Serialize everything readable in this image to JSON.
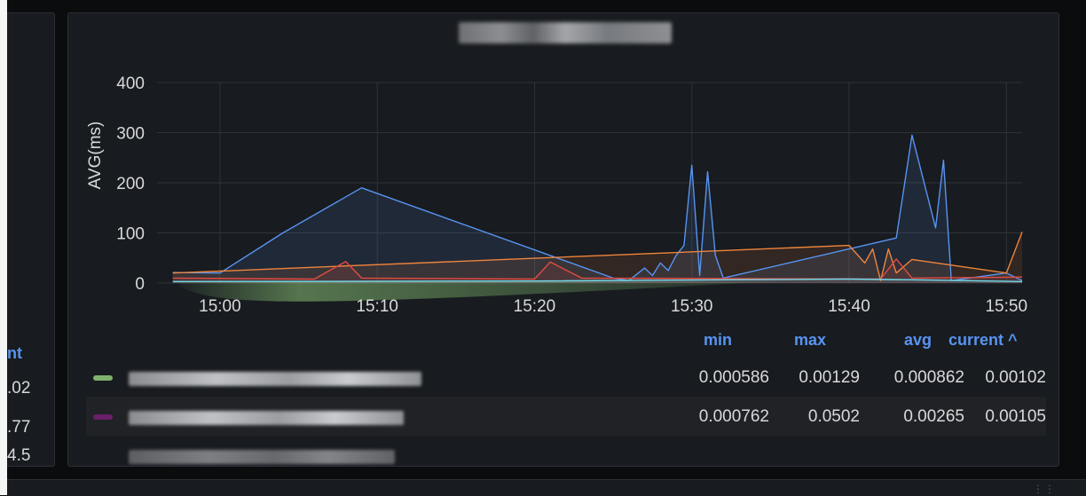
{
  "panel": {
    "y_axis_label": "AVG(ms)",
    "y_ticks": [
      "400",
      "300",
      "200",
      "100",
      "0"
    ],
    "x_ticks": [
      "15:00",
      "15:10",
      "15:20",
      "15:30",
      "15:40",
      "15:50"
    ]
  },
  "legend": {
    "columns": {
      "min": "min",
      "max": "max",
      "avg": "avg",
      "current": "current ^"
    },
    "rows": [
      {
        "swatch_color": "#7eb26d",
        "min": "0.000586",
        "max": "0.00129",
        "avg": "0.000862",
        "current": "0.00102"
      },
      {
        "swatch_color": "#6a1f6a",
        "min": "0.000762",
        "max": "0.0502",
        "avg": "0.00265",
        "current": "0.00105"
      }
    ]
  },
  "left_panel": {
    "header": "nt",
    "values": [
      ".02",
      ".77",
      "4.5"
    ]
  },
  "chart_data": {
    "type": "line",
    "ylabel": "AVG(ms)",
    "ylim": [
      0,
      400
    ],
    "x_range": [
      "14:56",
      "15:51"
    ],
    "series": [
      {
        "color": "#5794f2",
        "points": [
          [
            "14:57",
            21
          ],
          [
            "15:00",
            20
          ],
          [
            "15:04",
            100
          ],
          [
            "15:09",
            190
          ],
          [
            "15:25",
            10
          ],
          [
            "15:26",
            5
          ],
          [
            "15:27",
            30
          ],
          [
            "15:27.5",
            15
          ],
          [
            "15:28",
            40
          ],
          [
            "15:28.5",
            25
          ],
          [
            "15:29",
            55
          ],
          [
            "15:29.5",
            75
          ],
          [
            "15:30",
            235
          ],
          [
            "15:30.5",
            15
          ],
          [
            "15:31",
            222
          ],
          [
            "15:31.5",
            55
          ],
          [
            "15:32",
            10
          ],
          [
            "15:43",
            90
          ],
          [
            "15:44",
            295
          ],
          [
            "15:45.5",
            110
          ],
          [
            "15:46",
            245
          ],
          [
            "15:46.5",
            5
          ],
          [
            "15:50",
            20
          ],
          [
            "15:51",
            5
          ]
        ]
      },
      {
        "color": "#ef843c",
        "points": [
          [
            "14:57",
            20
          ],
          [
            "15:40",
            75
          ],
          [
            "15:41",
            40
          ],
          [
            "15:41.5",
            68
          ],
          [
            "15:42",
            5
          ],
          [
            "15:42.5",
            68
          ],
          [
            "15:43",
            20
          ],
          [
            "15:44",
            47
          ],
          [
            "15:50",
            20
          ],
          [
            "15:51",
            102
          ]
        ]
      },
      {
        "color": "#e24d42",
        "points": [
          [
            "14:57",
            10
          ],
          [
            "15:06",
            8
          ],
          [
            "15:08",
            43
          ],
          [
            "15:09",
            10
          ],
          [
            "15:20",
            8
          ],
          [
            "15:21",
            42
          ],
          [
            "15:23",
            10
          ],
          [
            "15:42",
            8
          ],
          [
            "15:43",
            48
          ],
          [
            "15:44",
            10
          ],
          [
            "15:51",
            12
          ]
        ]
      },
      {
        "color": "#70dbed",
        "points": [
          [
            "14:57",
            3
          ],
          [
            "15:20",
            4
          ],
          [
            "15:40",
            8
          ],
          [
            "15:45",
            6
          ],
          [
            "15:51",
            3
          ]
        ]
      }
    ]
  }
}
